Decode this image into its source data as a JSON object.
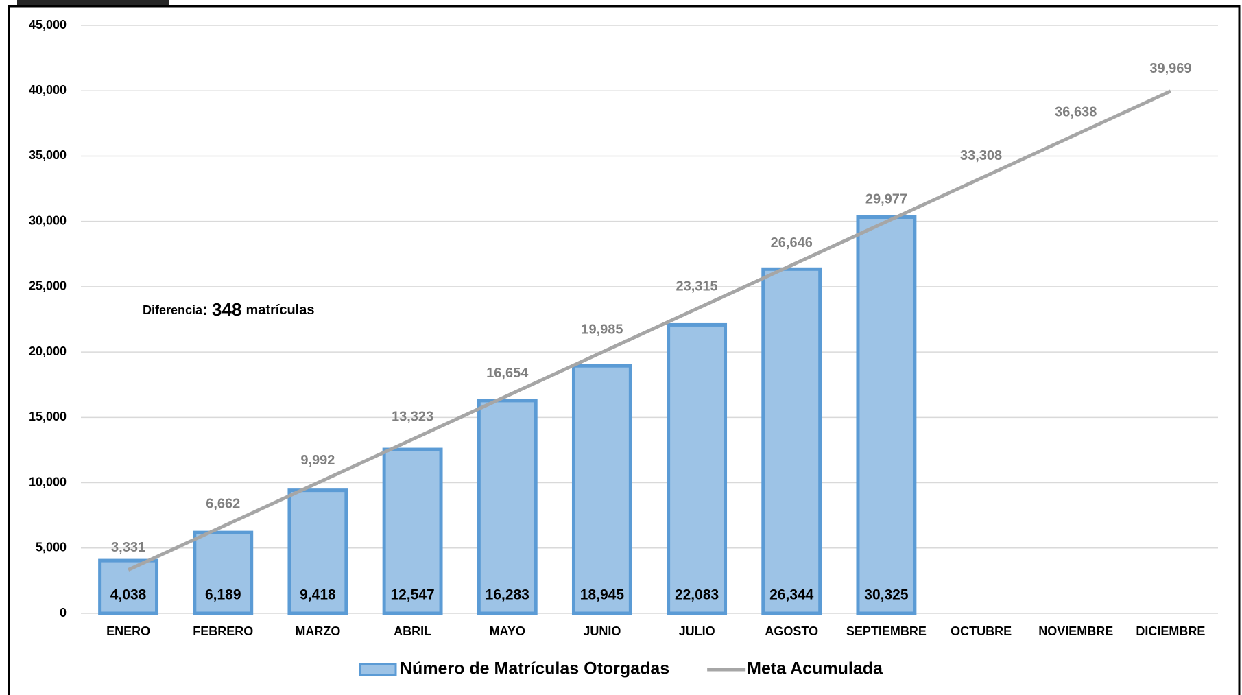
{
  "chart_data": {
    "type": "bar",
    "categories": [
      "ENERO",
      "FEBRERO",
      "MARZO",
      "ABRIL",
      "MAYO",
      "JUNIO",
      "JULIO",
      "AGOSTO",
      "SEPTIEMBRE",
      "OCTUBRE",
      "NOVIEMBRE",
      "DICIEMBRE"
    ],
    "series": [
      {
        "name": "Número de Matrículas Otorgadas",
        "type": "bar",
        "color": "#9dc3e6",
        "stroke": "#5b9bd5",
        "values": [
          4038,
          6189,
          9418,
          12547,
          16283,
          18945,
          22083,
          26344,
          30325,
          null,
          null,
          null
        ],
        "value_labels": [
          "4,038",
          "6,189",
          "9,418",
          "12,547",
          "16,283",
          "18,945",
          "22,083",
          "26,344",
          "30,325",
          null,
          null,
          null
        ]
      },
      {
        "name": "Meta Acumulada",
        "type": "line",
        "color": "#a6a6a6",
        "values": [
          3331,
          6662,
          9992,
          13323,
          16654,
          19985,
          23315,
          26646,
          29977,
          33308,
          36638,
          39969
        ],
        "value_labels": [
          "3,331",
          "6,662",
          "9,992",
          "13,323",
          "16,654",
          "19,985",
          "23,315",
          "26,646",
          "29,977",
          "33,308",
          "36,638",
          "39,969"
        ]
      }
    ],
    "ylim": [
      0,
      45000
    ],
    "yticks": [
      0,
      {
        "value": 5000,
        "label": "5,000"
      },
      {
        "value": 10000,
        "label": "10,000"
      },
      {
        "value": 15000,
        "label": "15,000"
      },
      {
        "value": 20000,
        "label": "20,000"
      },
      {
        "value": 25000,
        "label": "25,000"
      },
      {
        "value": 30000,
        "label": "30,000"
      },
      {
        "value": 35000,
        "label": "35,000"
      },
      {
        "value": 40000,
        "label": "40,000"
      },
      {
        "value": 45000,
        "label": "45,000"
      }
    ],
    "grid": true,
    "legend": "bottom",
    "annotation": {
      "label": "Diferencia",
      "colon": ":",
      "value": "348",
      "unit": "matrículas"
    }
  }
}
